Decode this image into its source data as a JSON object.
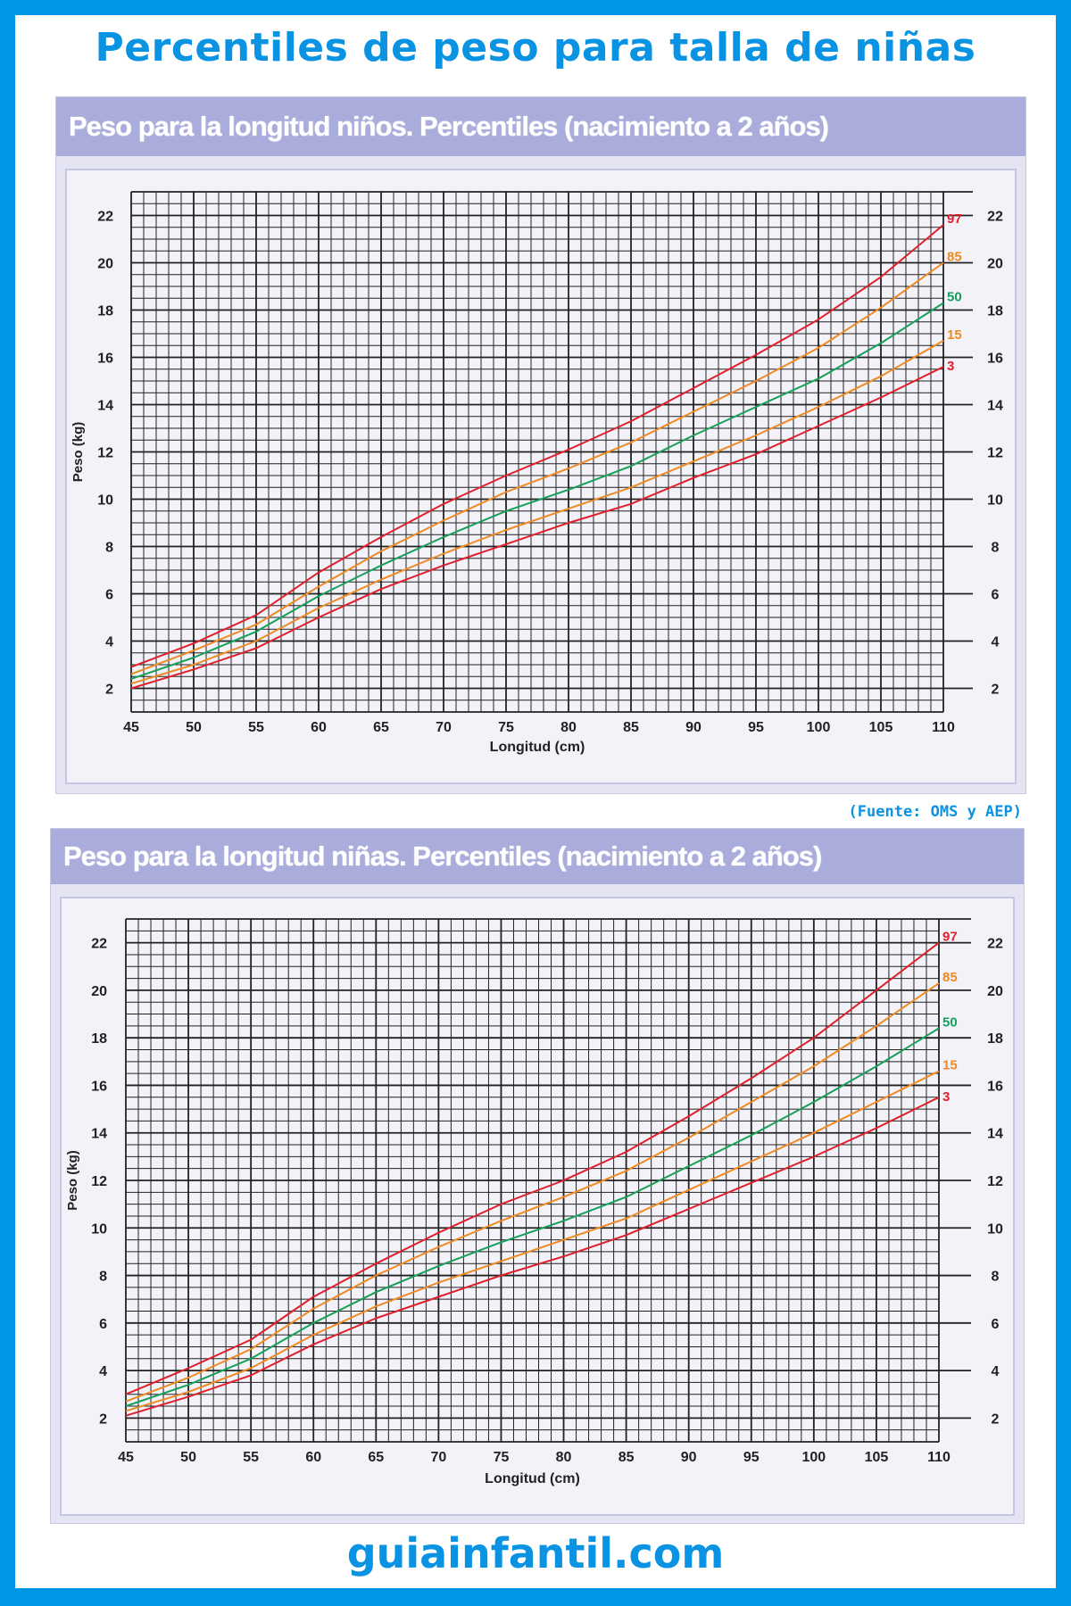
{
  "title": "Percentiles de peso para talla de niñas",
  "source": "(Fuente: OMS y AEP)",
  "logo": "guiainfantil.com",
  "colors": {
    "border": "#0096e6",
    "title": "#0a93e3",
    "header_band": "#aaaddb",
    "p97": "#e0202c",
    "p85": "#f08a24",
    "p50": "#16a05a",
    "p15": "#f08a24",
    "p3": "#e0202c"
  },
  "chart_data": [
    {
      "type": "line",
      "title": "Peso para la longitud niños. Percentiles (nacimiento a 2 años)",
      "xlabel": "Longitud (cm)",
      "ylabel": "Peso (kg)",
      "xlim": [
        45,
        110
      ],
      "ylim": [
        1,
        23
      ],
      "grid": true,
      "x_ticks": [
        "45",
        "50",
        "55",
        "60",
        "65",
        "70",
        "75",
        "80",
        "85",
        "90",
        "95",
        "100",
        "105",
        "110"
      ],
      "y_ticks": [
        "2",
        "4",
        "6",
        "8",
        "10",
        "12",
        "14",
        "16",
        "18",
        "20",
        "22"
      ],
      "x": [
        45,
        50,
        55,
        60,
        65,
        70,
        75,
        80,
        85,
        90,
        95,
        100,
        105,
        110
      ],
      "series": [
        {
          "name": "97",
          "color": "#e0202c",
          "values": [
            2.9,
            3.9,
            5.1,
            6.9,
            8.4,
            9.8,
            11.0,
            12.1,
            13.3,
            14.7,
            16.1,
            17.6,
            19.4,
            21.6
          ]
        },
        {
          "name": "85",
          "color": "#f08a24",
          "values": [
            2.6,
            3.6,
            4.7,
            6.3,
            7.8,
            9.1,
            10.3,
            11.3,
            12.4,
            13.7,
            15.0,
            16.4,
            18.1,
            20.0
          ]
        },
        {
          "name": "50",
          "color": "#16a05a",
          "values": [
            2.4,
            3.3,
            4.4,
            5.9,
            7.2,
            8.4,
            9.5,
            10.4,
            11.4,
            12.7,
            13.9,
            15.1,
            16.6,
            18.3
          ]
        },
        {
          "name": "15",
          "color": "#f08a24",
          "values": [
            2.2,
            3.0,
            4.0,
            5.4,
            6.6,
            7.7,
            8.7,
            9.6,
            10.5,
            11.6,
            12.7,
            13.9,
            15.2,
            16.7
          ]
        },
        {
          "name": "3",
          "color": "#e0202c",
          "values": [
            2.0,
            2.8,
            3.7,
            5.0,
            6.2,
            7.2,
            8.1,
            9.0,
            9.8,
            10.9,
            11.9,
            13.1,
            14.3,
            15.6
          ]
        }
      ]
    },
    {
      "type": "line",
      "title": "Peso para la longitud niñas. Percentiles (nacimiento a 2 años)",
      "xlabel": "Longitud (cm)",
      "ylabel": "Peso (kg)",
      "xlim": [
        45,
        110
      ],
      "ylim": [
        1,
        23
      ],
      "grid": true,
      "x_ticks": [
        "45",
        "50",
        "55",
        "60",
        "65",
        "70",
        "75",
        "80",
        "85",
        "90",
        "95",
        "100",
        "105",
        "110"
      ],
      "y_ticks": [
        "2",
        "4",
        "6",
        "8",
        "10",
        "12",
        "14",
        "16",
        "18",
        "20",
        "22"
      ],
      "x": [
        45,
        50,
        55,
        60,
        65,
        70,
        75,
        80,
        85,
        90,
        95,
        100,
        105,
        110
      ],
      "series": [
        {
          "name": "97",
          "color": "#e0202c",
          "values": [
            3.0,
            4.1,
            5.3,
            7.1,
            8.5,
            9.8,
            11.0,
            12.0,
            13.2,
            14.7,
            16.3,
            18.0,
            20.0,
            22.0
          ]
        },
        {
          "name": "85",
          "color": "#f08a24",
          "values": [
            2.7,
            3.7,
            4.9,
            6.6,
            8.0,
            9.2,
            10.3,
            11.3,
            12.4,
            13.8,
            15.3,
            16.8,
            18.5,
            20.3
          ]
        },
        {
          "name": "50",
          "color": "#16a05a",
          "values": [
            2.5,
            3.4,
            4.5,
            6.0,
            7.3,
            8.4,
            9.4,
            10.3,
            11.3,
            12.6,
            13.9,
            15.3,
            16.8,
            18.4
          ]
        },
        {
          "name": "15",
          "color": "#f08a24",
          "values": [
            2.3,
            3.1,
            4.1,
            5.5,
            6.7,
            7.7,
            8.6,
            9.5,
            10.4,
            11.6,
            12.8,
            14.0,
            15.3,
            16.6
          ]
        },
        {
          "name": "3",
          "color": "#e0202c",
          "values": [
            2.1,
            2.9,
            3.8,
            5.1,
            6.2,
            7.1,
            8.0,
            8.8,
            9.7,
            10.8,
            11.9,
            13.0,
            14.2,
            15.5
          ]
        }
      ]
    }
  ]
}
